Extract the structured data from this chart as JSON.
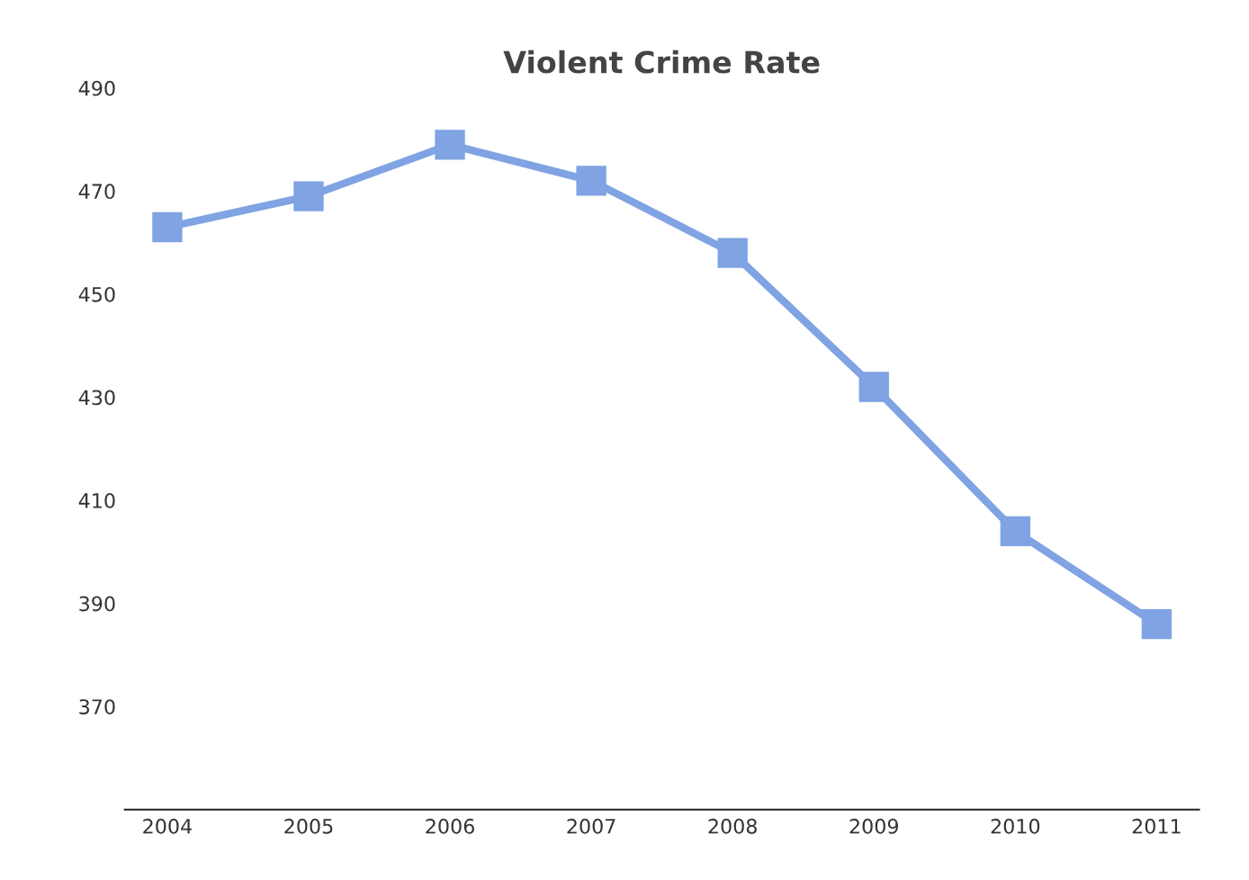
{
  "chart_data": {
    "type": "line",
    "title": "Violent Crime Rate",
    "categories": [
      "2004",
      "2005",
      "2006",
      "2007",
      "2008",
      "2009",
      "2010",
      "2011"
    ],
    "series": [
      {
        "color": "#7fa3e3",
        "values": [
          463,
          469,
          479,
          472,
          458,
          432,
          404,
          386
        ]
      }
    ],
    "ylim": [
      350,
      490
    ],
    "yticks": [
      370,
      390,
      410,
      430,
      450,
      470,
      490
    ],
    "grid": false,
    "legend": false,
    "marker": "square",
    "line_style": "solid"
  }
}
